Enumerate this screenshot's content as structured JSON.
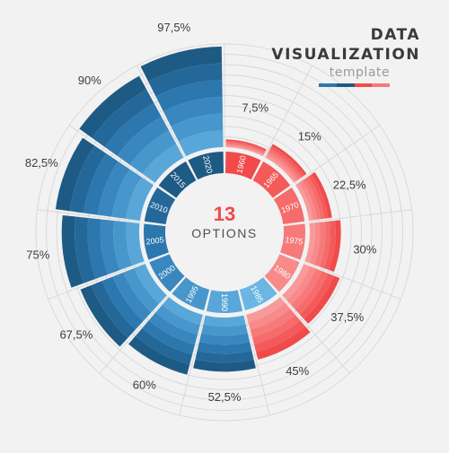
{
  "header": {
    "title_line1": "DATA",
    "title_line2": "VISUALIZATION",
    "subtitle": "template"
  },
  "center": {
    "count": "13",
    "label": "OPTIONS"
  },
  "colors": {
    "red": [
      "#f14a4a",
      "#f45a5a",
      "#f66b6b",
      "#f77a7a",
      "#f88a8a",
      "#f99a9a"
    ],
    "blue": [
      "#1d5a84",
      "#24689a",
      "#2c77ad",
      "#3987be",
      "#4897cc",
      "#58a7d8",
      "#6bb6e2"
    ],
    "label": "#3d3d3d",
    "inner_text": "#ffffff",
    "center_number": "#ef4a4a",
    "center_label": "#505050",
    "grid": "#d4d4d4",
    "background": "#f2f2f2"
  },
  "chart_data": {
    "type": "radial-bar",
    "categories": [
      "1960",
      "1965",
      "1970",
      "1975",
      "1980",
      "1985",
      "1990",
      "1995",
      "2000",
      "2005",
      "2010",
      "2015",
      "2020"
    ],
    "values": [
      7.5,
      15,
      22.5,
      30,
      37.5,
      45,
      52.5,
      60,
      67.5,
      75,
      82.5,
      90,
      97.5
    ],
    "value_labels": [
      "7,5%",
      "15%",
      "22,5%",
      "30%",
      "37,5%",
      "45%",
      "52,5%",
      "60%",
      "67,5%",
      "75%",
      "82,5%",
      "90%",
      "97,5%"
    ],
    "range": [
      0,
      100
    ],
    "grid": true
  }
}
